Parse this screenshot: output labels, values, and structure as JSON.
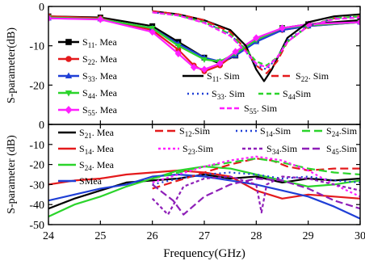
{
  "chart_data": [
    {
      "type": "line",
      "panel": "upper",
      "ylabel": "S-parameter(dB)",
      "xlim": [
        24,
        30
      ],
      "ylim": [
        -30,
        0
      ],
      "y_ticks": [
        "0",
        "-10",
        "-20",
        "-30"
      ],
      "grid": false,
      "legend_groups": [
        {
          "placement": "left",
          "items": [
            "S11_Mea",
            "S22_Mea",
            "S33_Mea",
            "S44_Mea",
            "S55_Mea"
          ]
        },
        {
          "placement": "bottom-right",
          "items": [
            "S11_Sim",
            "S22_Sim",
            "S33_Sim",
            "S44_Sim",
            "S55_Sim"
          ]
        }
      ],
      "series": [
        {
          "key": "S11_Mea",
          "sub": "11",
          "sep": ". ",
          "suffix": "Mea",
          "color": "#000000",
          "dash": "",
          "marker": "square",
          "x": [
            24,
            25,
            26,
            26.5,
            27,
            27.3,
            27.6,
            28,
            28.5,
            29,
            30
          ],
          "y": [
            -2.5,
            -2.8,
            -5,
            -9,
            -13,
            -14.5,
            -12.5,
            -8.5,
            -5.5,
            -4.5,
            -3.5
          ]
        },
        {
          "key": "S22_Mea",
          "sub": "22",
          "sep": ". ",
          "suffix": "Mea",
          "color": "#e41a1c",
          "dash": "",
          "marker": "circle",
          "x": [
            24,
            25,
            26,
            26.5,
            26.8,
            27,
            27.3,
            27.6,
            28,
            28.5,
            29,
            30
          ],
          "y": [
            -2.5,
            -3,
            -6,
            -11,
            -15,
            -16.5,
            -15,
            -12,
            -8.5,
            -6,
            -5,
            -4
          ]
        },
        {
          "key": "S33_Mea",
          "sub": "33",
          "sep": ". ",
          "suffix": "Mea",
          "color": "#1f3fd6",
          "dash": "",
          "marker": "triangle",
          "x": [
            24,
            25,
            26,
            26.5,
            27,
            27.3,
            27.6,
            28,
            28.5,
            29,
            30
          ],
          "y": [
            -3,
            -3.2,
            -5.5,
            -9.5,
            -13,
            -14,
            -12.5,
            -9,
            -6,
            -5,
            -4
          ]
        },
        {
          "key": "S44_Mea",
          "sub": "44",
          "sep": ". ",
          "suffix": "Mea",
          "color": "#2bd42b",
          "dash": "",
          "marker": "triangle-down",
          "x": [
            24,
            25,
            26,
            26.5,
            27,
            27.3,
            27.6,
            28,
            28.5,
            29,
            30
          ],
          "y": [
            -2.8,
            -3.2,
            -5.5,
            -10,
            -13.5,
            -14,
            -12,
            -8.5,
            -5.5,
            -4.8,
            -4
          ]
        },
        {
          "key": "S55_Mea",
          "sub": "55",
          "sep": ". ",
          "suffix": "Mea",
          "color": "#ff1fff",
          "dash": "",
          "marker": "diamond",
          "x": [
            24,
            25,
            26,
            26.5,
            26.8,
            27,
            27.3,
            27.6,
            28,
            28.5,
            29,
            30
          ],
          "y": [
            -3,
            -3.3,
            -6.5,
            -12,
            -15.5,
            -16,
            -14.5,
            -11.5,
            -8,
            -5.5,
            -4.5,
            -4
          ]
        },
        {
          "key": "S11_Sim",
          "sub": "11",
          "sep": ". ",
          "suffix": "Sim",
          "color": "#000000",
          "dash": "",
          "marker": "none",
          "x": [
            26,
            26.5,
            27,
            27.5,
            27.8,
            28,
            28.15,
            28.3,
            28.6,
            29,
            29.5,
            30
          ],
          "y": [
            -1.2,
            -2,
            -3.5,
            -6,
            -10,
            -16,
            -19,
            -16,
            -8,
            -4,
            -2.5,
            -2
          ]
        },
        {
          "key": "S22_Sim",
          "sub": "22",
          "sep": ". ",
          "suffix": "Sim",
          "color": "#e41a1c",
          "dash": "9 5",
          "marker": "none",
          "x": [
            26,
            26.5,
            27,
            27.5,
            27.8,
            28,
            28.2,
            28.4,
            28.6,
            29,
            29.5,
            30
          ],
          "y": [
            -1.2,
            -2,
            -3.5,
            -6.5,
            -11,
            -15,
            -17,
            -14,
            -9,
            -5,
            -3,
            -2.5
          ]
        },
        {
          "key": "S33_Sim",
          "sub": "33",
          "sep": ". ",
          "suffix": "Sim",
          "color": "#1f3fd6",
          "dash": "2 4",
          "marker": "none",
          "x": [
            26,
            26.5,
            27,
            27.5,
            27.8,
            28,
            28.2,
            28.4,
            28.6,
            29,
            29.5,
            30
          ],
          "y": [
            -1.5,
            -2.2,
            -4,
            -7,
            -11.5,
            -15,
            -16,
            -13,
            -8.5,
            -5,
            -3,
            -2.5
          ]
        },
        {
          "key": "S44_Sim",
          "sub": "44",
          "sep": "",
          "suffix": "Sim",
          "color": "#2bd42b",
          "dash": "6 4",
          "marker": "none",
          "x": [
            26,
            26.5,
            27,
            27.5,
            27.8,
            28,
            28.2,
            28.4,
            28.6,
            29,
            29.5,
            30
          ],
          "y": [
            -1.5,
            -2.3,
            -4,
            -7,
            -11,
            -14,
            -15,
            -13,
            -9,
            -5,
            -3,
            -2.5
          ]
        },
        {
          "key": "S55_Sim",
          "sub": "55",
          "sep": ". ",
          "suffix": "Sim",
          "color": "#ff1fff",
          "dash": "6 3",
          "marker": "none",
          "x": [
            26,
            26.5,
            27,
            27.5,
            27.8,
            28,
            28.2,
            28.4,
            28.6,
            29,
            29.5,
            30
          ],
          "y": [
            -1.5,
            -2.3,
            -4.2,
            -7.5,
            -11.5,
            -14.5,
            -15.5,
            -13,
            -9,
            -5,
            -3.2,
            -2.8
          ]
        }
      ]
    },
    {
      "type": "line",
      "panel": "lower",
      "ylabel": "S-parameter (dB)",
      "xlabel": "Frequency(GHz)",
      "xlim": [
        24,
        30
      ],
      "ylim": [
        -50,
        0
      ],
      "x_ticks": [
        "24",
        "25",
        "26",
        "27",
        "28",
        "29",
        "30"
      ],
      "y_ticks": [
        "0",
        "-10",
        "-20",
        "-30",
        "-40",
        "-50"
      ],
      "grid": false,
      "legend_groups": [
        {
          "placement": "left",
          "items": [
            "S21_Mea",
            "S14_Mea",
            "S24_Mea",
            "S_Mea"
          ]
        },
        {
          "placement": "top-right",
          "items": [
            "S12_Sim",
            "S14_Sim",
            "S24_Sim",
            "S23_Sim",
            "S34_Sim",
            "S45_Sim"
          ]
        }
      ],
      "series": [
        {
          "key": "S21_Mea",
          "sub": "21",
          "sep": ". ",
          "suffix": "Mea",
          "color": "#000000",
          "dash": "",
          "x": [
            24,
            24.5,
            25,
            25.5,
            26,
            26.5,
            27,
            27.5,
            28,
            28.5,
            29,
            29.5,
            30
          ],
          "y": [
            -42,
            -37,
            -33,
            -29,
            -28,
            -27,
            -25,
            -27,
            -26,
            -29,
            -27,
            -28,
            -27
          ]
        },
        {
          "key": "S14_Mea",
          "sub": "14",
          "sep": ". ",
          "suffix": "Mea",
          "color": "#e41a1c",
          "dash": "",
          "x": [
            24,
            24.5,
            25,
            25.5,
            26,
            26.5,
            27,
            27.5,
            28,
            28.5,
            29,
            29.5,
            30
          ],
          "y": [
            -30,
            -28,
            -27,
            -25,
            -24,
            -23,
            -24,
            -26,
            -33,
            -37,
            -35,
            -36,
            -37
          ]
        },
        {
          "key": "S24_Mea",
          "sub": "24",
          "sep": ". ",
          "suffix": "Mea",
          "color": "#2bd42b",
          "dash": "",
          "x": [
            24,
            24.5,
            25,
            25.5,
            26,
            26.5,
            27,
            27.5,
            28,
            28.5,
            29,
            29.5,
            30
          ],
          "y": [
            -46,
            -40,
            -36,
            -31,
            -27,
            -23,
            -21,
            -22,
            -25,
            -28,
            -31,
            -30,
            -28
          ]
        },
        {
          "key": "S_Mea",
          "sub": "",
          "sep": "",
          "suffix": "Mea",
          "color": "#1f3fd6",
          "dash": "",
          "x": [
            24,
            24.5,
            25,
            25.5,
            26,
            26.5,
            27,
            27.5,
            28,
            28.5,
            29,
            29.5,
            30
          ],
          "y": [
            -38,
            -35,
            -32,
            -30,
            -26,
            -25,
            -26,
            -28,
            -30,
            -33,
            -36,
            -41,
            -47
          ]
        },
        {
          "key": "S12_Sim",
          "sub": "12",
          "sep": ".",
          "suffix": "Sim",
          "color": "#e41a1c",
          "dash": "10 5",
          "marker": "none",
          "x": [
            26,
            26.5,
            27,
            27.5,
            28,
            28.3,
            28.6,
            29,
            29.5,
            30
          ],
          "y": [
            -32,
            -28,
            -24,
            -20,
            -17,
            -18,
            -21,
            -23,
            -22,
            -22
          ]
        },
        {
          "key": "S14_Sim",
          "sub": "14",
          "sep": ".",
          "suffix": "Sim",
          "color": "#1f3fd6",
          "dash": "2 4",
          "marker": "none",
          "x": [
            26,
            26.5,
            27,
            27.5,
            28,
            28.5,
            29,
            29.5,
            30
          ],
          "y": [
            -30,
            -27,
            -25,
            -24,
            -25,
            -27,
            -26,
            -28,
            -29
          ]
        },
        {
          "key": "S24_Sim",
          "sub": "24",
          "sep": ".",
          "suffix": "Sim",
          "color": "#2bd42b",
          "dash": "10 5",
          "marker": "none",
          "x": [
            26,
            26.5,
            27,
            27.5,
            28,
            28.5,
            29,
            29.5,
            30
          ],
          "y": [
            -27,
            -24,
            -21,
            -19,
            -17,
            -19,
            -22,
            -24,
            -25
          ]
        },
        {
          "key": "S23_Sim",
          "sub": "23",
          "sep": ".",
          "suffix": "Sim",
          "color": "#ff1fff",
          "dash": "3 3",
          "marker": "none",
          "x": [
            26,
            26.5,
            27,
            27.5,
            28,
            28.5,
            29,
            29.5,
            30
          ],
          "y": [
            -29,
            -25,
            -21,
            -18,
            -16,
            -18,
            -23,
            -30,
            -36
          ]
        },
        {
          "key": "S34_Sim",
          "sub": "34",
          "sep": ".",
          "suffix": "Sim",
          "color": "#8e1fb8",
          "dash": "4 3",
          "marker": "none",
          "x": [
            26,
            26.3,
            26.6,
            27,
            27.5,
            28,
            28.1,
            28.2,
            28.5,
            29,
            29.5,
            30
          ],
          "y": [
            -37,
            -45,
            -31,
            -27,
            -26,
            -30,
            -44,
            -30,
            -26,
            -27,
            -30,
            -33
          ]
        },
        {
          "key": "S45_Sim",
          "sub": "45",
          "sep": ".",
          "suffix": "Sim",
          "color": "#8e1fb8",
          "dash": "9 4",
          "marker": "none",
          "x": [
            26,
            26.4,
            26.6,
            27,
            27.5,
            28,
            28.5,
            29,
            29.5,
            30
          ],
          "y": [
            -30,
            -38,
            -45,
            -36,
            -30,
            -27,
            -28,
            -32,
            -38,
            -42
          ]
        }
      ]
    }
  ]
}
